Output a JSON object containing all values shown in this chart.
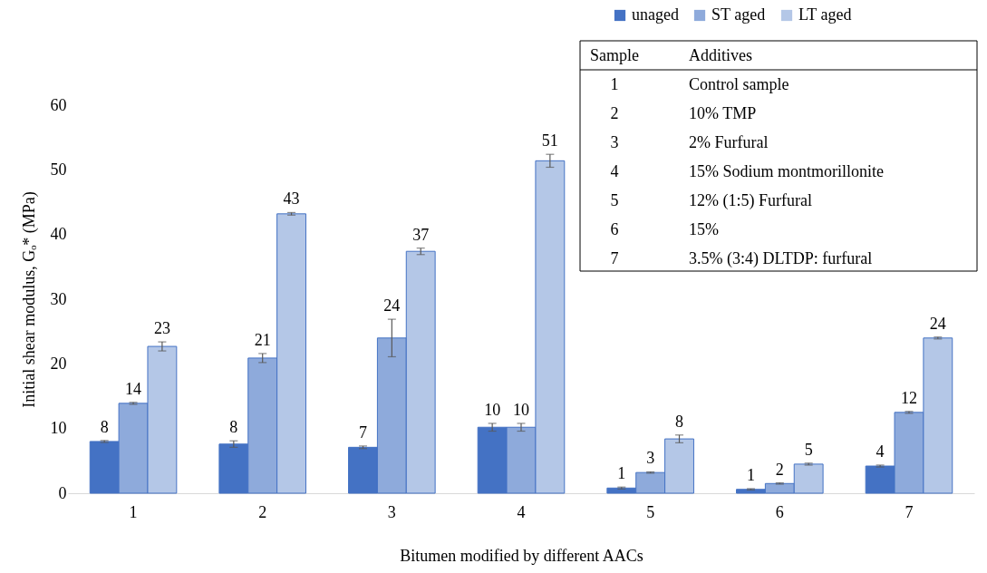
{
  "chart_data": {
    "type": "bar",
    "xlabel": "Bitumen modified by different AACs",
    "ylabel": "Initial shear modulus, Gₒ* (MPa)",
    "categories": [
      "1",
      "2",
      "3",
      "4",
      "5",
      "6",
      "7"
    ],
    "series": [
      {
        "name": "unaged",
        "color": "#4472c4",
        "values": [
          8.0,
          7.6,
          7.1,
          10.2,
          0.8,
          0.6,
          4.2
        ],
        "errors": [
          0.15,
          0.5,
          0.2,
          0.6,
          0.15,
          0.1,
          0.15
        ],
        "value_labels": [
          "8",
          "8",
          "7",
          "10",
          "1",
          "1",
          "4"
        ]
      },
      {
        "name": "ST aged",
        "color": "#8eaadb",
        "values": [
          13.9,
          20.9,
          24.0,
          10.2,
          3.2,
          1.5,
          12.5
        ],
        "errors": [
          0.15,
          0.7,
          2.9,
          0.6,
          0.1,
          0.1,
          0.15
        ],
        "value_labels": [
          "14",
          "21",
          "24",
          "10",
          "3",
          "2",
          "12"
        ]
      },
      {
        "name": "LT aged",
        "color": "#b4c7e7",
        "values": [
          22.7,
          43.2,
          37.4,
          51.4,
          8.4,
          4.5,
          24.0
        ],
        "errors": [
          0.7,
          0.2,
          0.5,
          1.0,
          0.6,
          0.15,
          0.15
        ],
        "value_labels": [
          "23",
          "43",
          "37",
          "51",
          "8",
          "5",
          "24"
        ]
      }
    ],
    "ylim": [
      0,
      60
    ],
    "yticks": [
      0,
      10,
      20,
      30,
      40,
      50,
      60
    ],
    "grid": false,
    "legend": "top right",
    "annotations": [
      "Sample",
      "Additives",
      "1",
      "Control sample",
      "2",
      "10% TMP",
      "3",
      "2% Furfural",
      "4",
      "15% Sodium montmorillonite",
      "5",
      "12% (1:5) Furfural",
      "6",
      "15%",
      "7",
      "3.5% (3:4) DLTDP: furfural"
    ]
  }
}
